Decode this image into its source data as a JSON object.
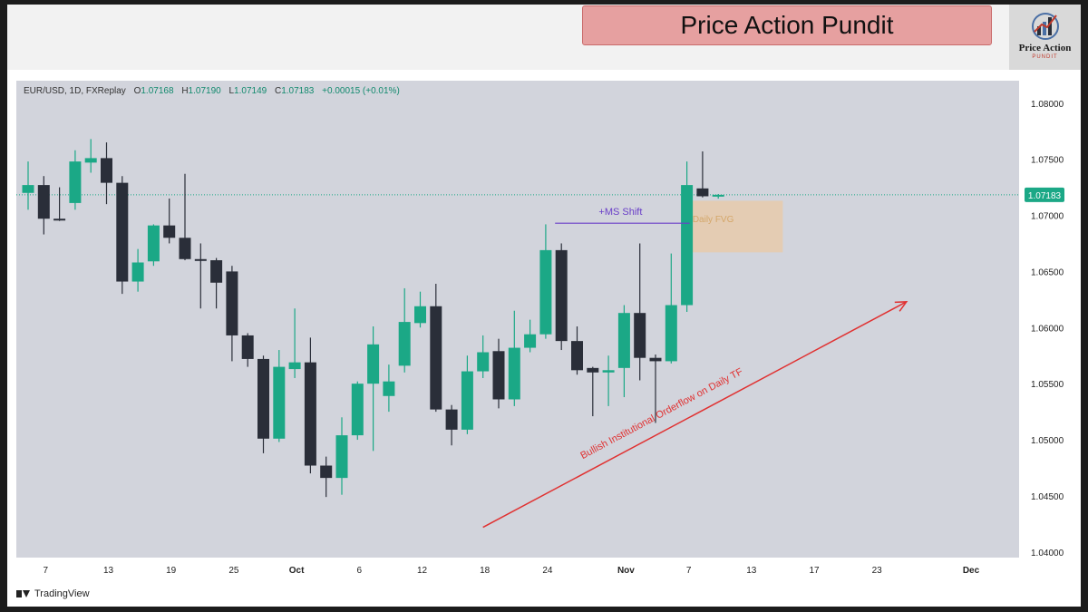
{
  "header": {
    "brand_title": "Price Action Pundit",
    "logo_text": "Price Action",
    "logo_sub": "PUNDIT"
  },
  "legend": {
    "symbol": "EUR/USD, 1D, FXReplay",
    "open_label": "O",
    "open": "1.07168",
    "high_label": "H",
    "high": "1.07190",
    "low_label": "L",
    "low": "1.07149",
    "close_label": "C",
    "close": "1.07183",
    "change": "+0.00015 (+0.01%)"
  },
  "footer": {
    "brand": "TradingView"
  },
  "colors": {
    "bull": "#1ba886",
    "bear": "#2a2e39",
    "arrow": "#e03131",
    "ms_line": "#6a3fc8",
    "fvg": "#e9c9a5",
    "background": "#d2d4dc"
  },
  "chart_data": {
    "type": "candlestick",
    "ylim": [
      1.0395,
      1.082
    ],
    "y_ticks": [
      "1.08000",
      "1.07500",
      "1.07000",
      "1.06500",
      "1.06000",
      "1.05500",
      "1.05000",
      "1.04500",
      "1.04000"
    ],
    "y_tick_values": [
      1.08,
      1.075,
      1.07,
      1.065,
      1.06,
      1.055,
      1.05,
      1.045,
      1.04
    ],
    "current_price": 1.07183,
    "current_price_label": "1.07183",
    "x_ticks": [
      {
        "label": "7",
        "index": 1,
        "bold": false
      },
      {
        "label": "13",
        "index": 5,
        "bold": false
      },
      {
        "label": "19",
        "index": 9,
        "bold": false
      },
      {
        "label": "25",
        "index": 13,
        "bold": false
      },
      {
        "label": "Oct",
        "index": 17,
        "bold": true
      },
      {
        "label": "6",
        "index": 21,
        "bold": false
      },
      {
        "label": "12",
        "index": 25,
        "bold": false
      },
      {
        "label": "18",
        "index": 29,
        "bold": false
      },
      {
        "label": "24",
        "index": 33,
        "bold": false
      },
      {
        "label": "Nov",
        "index": 38,
        "bold": true
      },
      {
        "label": "7",
        "index": 42,
        "bold": false
      },
      {
        "label": "13",
        "index": 46,
        "bold": false
      },
      {
        "label": "17",
        "index": 50,
        "bold": false
      },
      {
        "label": "23",
        "index": 54,
        "bold": false
      },
      {
        "label": "Dec",
        "index": 60,
        "bold": true
      }
    ],
    "candles": [
      {
        "o": 1.072,
        "h": 1.0748,
        "l": 1.0705,
        "c": 1.0727
      },
      {
        "o": 1.0727,
        "h": 1.0735,
        "l": 1.0683,
        "c": 1.0697
      },
      {
        "o": 1.0697,
        "h": 1.0725,
        "l": 1.0695,
        "c": 1.0696
      },
      {
        "o": 1.0711,
        "h": 1.0758,
        "l": 1.0705,
        "c": 1.0748
      },
      {
        "o": 1.0747,
        "h": 1.0768,
        "l": 1.0738,
        "c": 1.0751
      },
      {
        "o": 1.0751,
        "h": 1.0765,
        "l": 1.071,
        "c": 1.0729
      },
      {
        "o": 1.0729,
        "h": 1.0735,
        "l": 1.063,
        "c": 1.0641
      },
      {
        "o": 1.0641,
        "h": 1.067,
        "l": 1.0632,
        "c": 1.0658
      },
      {
        "o": 1.0659,
        "h": 1.0692,
        "l": 1.0655,
        "c": 1.0691
      },
      {
        "o": 1.0691,
        "h": 1.0715,
        "l": 1.0675,
        "c": 1.068
      },
      {
        "o": 1.068,
        "h": 1.0737,
        "l": 1.066,
        "c": 1.0661
      },
      {
        "o": 1.0661,
        "h": 1.0675,
        "l": 1.0617,
        "c": 1.066
      },
      {
        "o": 1.066,
        "h": 1.0662,
        "l": 1.0617,
        "c": 1.064
      },
      {
        "o": 1.065,
        "h": 1.0655,
        "l": 1.057,
        "c": 1.0593
      },
      {
        "o": 1.0593,
        "h": 1.0595,
        "l": 1.0565,
        "c": 1.0572
      },
      {
        "o": 1.0572,
        "h": 1.0575,
        "l": 1.0488,
        "c": 1.0501
      },
      {
        "o": 1.0501,
        "h": 1.058,
        "l": 1.0498,
        "c": 1.0565
      },
      {
        "o": 1.0563,
        "h": 1.0617,
        "l": 1.0555,
        "c": 1.0569
      },
      {
        "o": 1.0569,
        "h": 1.0591,
        "l": 1.047,
        "c": 1.0477
      },
      {
        "o": 1.0477,
        "h": 1.0485,
        "l": 1.0449,
        "c": 1.0466
      },
      {
        "o": 1.0466,
        "h": 1.052,
        "l": 1.0451,
        "c": 1.0504
      },
      {
        "o": 1.0504,
        "h": 1.0552,
        "l": 1.05,
        "c": 1.055
      },
      {
        "o": 1.055,
        "h": 1.0601,
        "l": 1.049,
        "c": 1.0585
      },
      {
        "o": 1.0539,
        "h": 1.0567,
        "l": 1.0525,
        "c": 1.0552
      },
      {
        "o": 1.0566,
        "h": 1.0635,
        "l": 1.056,
        "c": 1.0605
      },
      {
        "o": 1.0604,
        "h": 1.0632,
        "l": 1.06,
        "c": 1.0619
      },
      {
        "o": 1.0619,
        "h": 1.0639,
        "l": 1.0525,
        "c": 1.0527
      },
      {
        "o": 1.0527,
        "h": 1.0531,
        "l": 1.0495,
        "c": 1.0509
      },
      {
        "o": 1.0509,
        "h": 1.0575,
        "l": 1.0505,
        "c": 1.0561
      },
      {
        "o": 1.0561,
        "h": 1.0593,
        "l": 1.0555,
        "c": 1.0578
      },
      {
        "o": 1.0579,
        "h": 1.059,
        "l": 1.0528,
        "c": 1.0536
      },
      {
        "o": 1.0536,
        "h": 1.0615,
        "l": 1.053,
        "c": 1.0582
      },
      {
        "o": 1.0582,
        "h": 1.0607,
        "l": 1.0578,
        "c": 1.0594
      },
      {
        "o": 1.0594,
        "h": 1.0692,
        "l": 1.059,
        "c": 1.0669
      },
      {
        "o": 1.0669,
        "h": 1.0675,
        "l": 1.058,
        "c": 1.0588
      },
      {
        "o": 1.0588,
        "h": 1.0601,
        "l": 1.0558,
        "c": 1.0562
      },
      {
        "o": 1.0564,
        "h": 1.0565,
        "l": 1.0521,
        "c": 1.056
      },
      {
        "o": 1.056,
        "h": 1.0575,
        "l": 1.053,
        "c": 1.0562
      },
      {
        "o": 1.0564,
        "h": 1.062,
        "l": 1.0538,
        "c": 1.0613
      },
      {
        "o": 1.0613,
        "h": 1.0675,
        "l": 1.0553,
        "c": 1.0573
      },
      {
        "o": 1.0573,
        "h": 1.0576,
        "l": 1.0515,
        "c": 1.057
      },
      {
        "o": 1.057,
        "h": 1.0666,
        "l": 1.0568,
        "c": 1.062
      },
      {
        "o": 1.062,
        "h": 1.0748,
        "l": 1.0614,
        "c": 1.0727
      },
      {
        "o": 1.0724,
        "h": 1.0757,
        "l": 1.0716,
        "c": 1.0717
      },
      {
        "o": 1.07168,
        "h": 1.0719,
        "l": 1.07149,
        "c": 1.07183
      }
    ],
    "annotations": {
      "ms_shift": {
        "label": "+MS Shift",
        "price": 1.0693,
        "from_index": 34,
        "to_index": 42
      },
      "fvg": {
        "label": "Daily FVG",
        "top": 1.0713,
        "bottom": 1.0667,
        "from_index": 42,
        "to_index": 48
      },
      "trend_arrow": {
        "label": "Bullish Institutional Orderflow on Daily TF",
        "from_index": 29,
        "from_price": 1.0422,
        "to_index": 56,
        "to_price": 1.0623
      }
    }
  }
}
